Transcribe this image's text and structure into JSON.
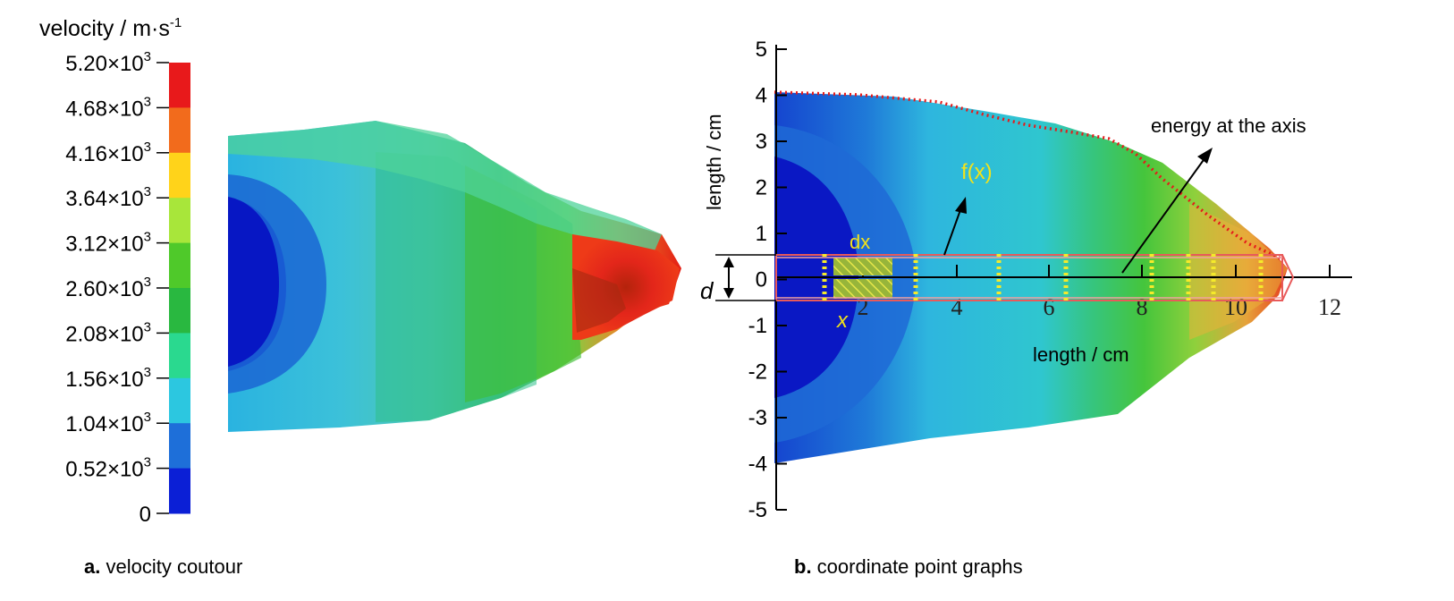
{
  "colorbar": {
    "title": "velocity / m·s",
    "title_sup": "-1",
    "mantissas": [
      "5.20",
      "4.68",
      "4.16",
      "3.64",
      "3.12",
      "2.60",
      "2.08",
      "1.56",
      "1.04",
      "0.52"
    ],
    "times": "×10",
    "exponent": "3",
    "zero": "0",
    "colors": [
      "#e8191b",
      "#f26b1c",
      "#ffd31a",
      "#a8e63a",
      "#4fc92a",
      "#29b840",
      "#2ad98f",
      "#2cc7e0",
      "#1e6fd9",
      "#0b1fd6"
    ]
  },
  "panel_a": {
    "caption_letter": "a.",
    "caption_text": " velocity coutour"
  },
  "panel_b": {
    "caption_letter": "b.",
    "caption_text": " coordinate point graphs",
    "ylabel": "length / cm",
    "xlabel": "length / cm",
    "y_ticks": [
      "5",
      "4",
      "3",
      "2",
      "1",
      "0",
      "-1",
      "-2",
      "-3",
      "-4",
      "-5"
    ],
    "x_ticks": [
      "2",
      "4",
      "6",
      "8",
      "10",
      "12"
    ],
    "annotations": {
      "fx": "f(x)",
      "dx": "dx",
      "x": "x",
      "d": "d",
      "energy": "energy at the axis"
    }
  }
}
